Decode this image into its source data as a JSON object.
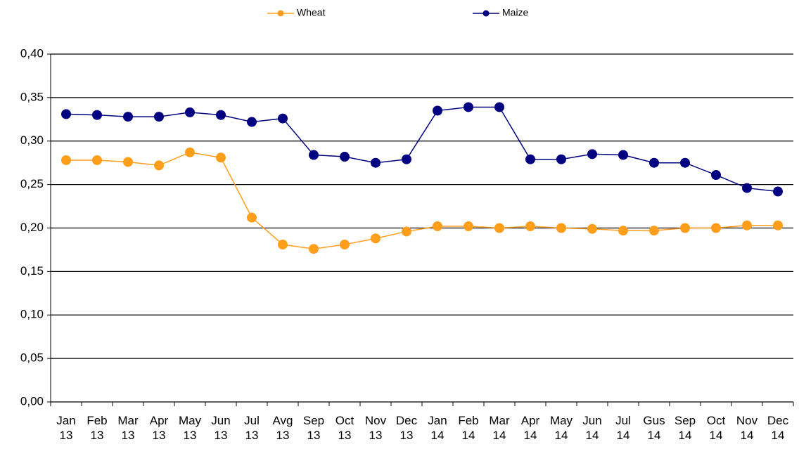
{
  "chart_data": {
    "type": "line",
    "categories": [
      "Jan 13",
      "Feb 13",
      "Mar 13",
      "Apr 13",
      "May 13",
      "Jun 13",
      "Jul 13",
      "Avg 13",
      "Sep 13",
      "Oct 13",
      "Nov 13",
      "Dec 13",
      "Jan 14",
      "Feb 14",
      "Mar 14",
      "Apr 14",
      "May 14",
      "Jun 14",
      "Jul 14",
      "Gus 14",
      "Sep 14",
      "Oct 14",
      "Nov 14",
      "Dec 14"
    ],
    "series": [
      {
        "name": "Wheat",
        "color": "#ff9e1b",
        "values": [
          0.278,
          0.278,
          0.276,
          0.272,
          0.287,
          0.281,
          0.212,
          0.181,
          0.176,
          0.181,
          0.188,
          0.196,
          0.202,
          0.202,
          0.2,
          0.202,
          0.2,
          0.199,
          0.197,
          0.197,
          0.2,
          0.2,
          0.203,
          0.203
        ]
      },
      {
        "name": "Maize",
        "color": "#000080",
        "values": [
          0.331,
          0.33,
          0.328,
          0.328,
          0.333,
          0.33,
          0.322,
          0.326,
          0.284,
          0.282,
          0.275,
          0.279,
          0.335,
          0.339,
          0.339,
          0.279,
          0.279,
          0.285,
          0.284,
          0.275,
          0.275,
          0.261,
          0.246,
          0.242
        ]
      }
    ],
    "ylim": [
      0,
      0.4
    ],
    "yticks": [
      {
        "value": 0,
        "label": "0,00"
      },
      {
        "value": 0.05,
        "label": "0,05"
      },
      {
        "value": 0.1,
        "label": "0,10"
      },
      {
        "value": 0.15,
        "label": "0,15"
      },
      {
        "value": 0.2,
        "label": "0,20"
      },
      {
        "value": 0.25,
        "label": "0,25"
      },
      {
        "value": 0.3,
        "label": "0,30"
      },
      {
        "value": 0.35,
        "label": "0,35"
      },
      {
        "value": 0.4,
        "label": "0,40"
      }
    ],
    "grid": true,
    "legend": "top"
  }
}
